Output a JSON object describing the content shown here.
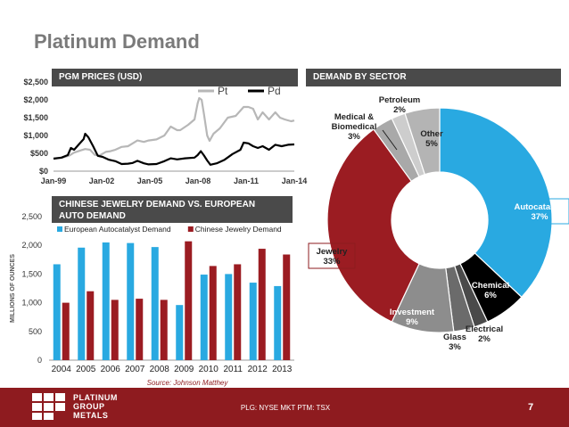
{
  "page_title": "Platinum Demand",
  "page_number": "7",
  "footer": {
    "logo_lines": [
      "PLATINUM",
      "GROUP",
      "METALS"
    ],
    "ticker": "PLG: NYSE MKT PTM: TSX"
  },
  "colors": {
    "accent_red": "#8e1b1f",
    "header_gray": "#4a4a4a",
    "blue": "#29a9e1",
    "red": "#9b1c22"
  },
  "chart_data": [
    {
      "type": "line",
      "title": "PGM PRICES (USD)",
      "x_ticks": [
        "Jan-99",
        "Jan-02",
        "Jan-05",
        "Jan-08",
        "Jan-11",
        "Jan-14"
      ],
      "y_ticks": [
        "$0",
        "$500",
        "$1,000",
        "$1,500",
        "$2,000",
        "$2,500"
      ],
      "ylim": [
        0,
        2500
      ],
      "xlim": [
        1999.0,
        2014.2
      ],
      "legend": "top-right",
      "series": [
        {
          "name": "Pt",
          "color": "#b7b7b7",
          "points": [
            [
              1999.0,
              360
            ],
            [
              1999.5,
              370
            ],
            [
              2000.0,
              440
            ],
            [
              2000.3,
              520
            ],
            [
              2000.7,
              580
            ],
            [
              2001.0,
              620
            ],
            [
              2001.3,
              600
            ],
            [
              2001.6,
              460
            ],
            [
              2001.9,
              440
            ],
            [
              2002.3,
              540
            ],
            [
              2002.6,
              560
            ],
            [
              2002.9,
              600
            ],
            [
              2003.3,
              680
            ],
            [
              2003.7,
              700
            ],
            [
              2004.0,
              780
            ],
            [
              2004.3,
              860
            ],
            [
              2004.7,
              820
            ],
            [
              2005.0,
              860
            ],
            [
              2005.5,
              890
            ],
            [
              2006.0,
              1000
            ],
            [
              2006.4,
              1250
            ],
            [
              2006.8,
              1150
            ],
            [
              2007.0,
              1150
            ],
            [
              2007.5,
              1300
            ],
            [
              2007.9,
              1450
            ],
            [
              2008.1,
              1900
            ],
            [
              2008.2,
              2050
            ],
            [
              2008.35,
              2000
            ],
            [
              2008.5,
              1600
            ],
            [
              2008.7,
              1000
            ],
            [
              2008.85,
              850
            ],
            [
              2009.1,
              1050
            ],
            [
              2009.5,
              1200
            ],
            [
              2010.0,
              1500
            ],
            [
              2010.5,
              1550
            ],
            [
              2011.0,
              1800
            ],
            [
              2011.3,
              1800
            ],
            [
              2011.6,
              1750
            ],
            [
              2011.9,
              1450
            ],
            [
              2012.2,
              1650
            ],
            [
              2012.6,
              1450
            ],
            [
              2013.0,
              1650
            ],
            [
              2013.3,
              1500
            ],
            [
              2013.6,
              1450
            ],
            [
              2014.0,
              1400
            ],
            [
              2014.2,
              1420
            ]
          ]
        },
        {
          "name": "Pd",
          "color": "#000000",
          "points": [
            [
              1999.0,
              350
            ],
            [
              1999.5,
              380
            ],
            [
              1999.9,
              450
            ],
            [
              2000.1,
              650
            ],
            [
              2000.3,
              600
            ],
            [
              2000.6,
              750
            ],
            [
              2000.9,
              900
            ],
            [
              2001.0,
              1050
            ],
            [
              2001.2,
              950
            ],
            [
              2001.5,
              700
            ],
            [
              2001.8,
              430
            ],
            [
              2002.1,
              400
            ],
            [
              2002.5,
              320
            ],
            [
              2002.9,
              280
            ],
            [
              2003.3,
              200
            ],
            [
              2003.7,
              210
            ],
            [
              2004.0,
              230
            ],
            [
              2004.3,
              290
            ],
            [
              2004.7,
              220
            ],
            [
              2005.0,
              190
            ],
            [
              2005.5,
              200
            ],
            [
              2006.0,
              280
            ],
            [
              2006.4,
              360
            ],
            [
              2006.8,
              330
            ],
            [
              2007.3,
              360
            ],
            [
              2007.9,
              380
            ],
            [
              2008.1,
              450
            ],
            [
              2008.3,
              560
            ],
            [
              2008.5,
              440
            ],
            [
              2008.7,
              300
            ],
            [
              2008.9,
              180
            ],
            [
              2009.3,
              220
            ],
            [
              2009.8,
              320
            ],
            [
              2010.3,
              480
            ],
            [
              2010.8,
              600
            ],
            [
              2011.0,
              800
            ],
            [
              2011.3,
              780
            ],
            [
              2011.6,
              700
            ],
            [
              2011.9,
              650
            ],
            [
              2012.2,
              700
            ],
            [
              2012.6,
              600
            ],
            [
              2013.0,
              740
            ],
            [
              2013.4,
              700
            ],
            [
              2013.8,
              740
            ],
            [
              2014.2,
              750
            ]
          ]
        }
      ]
    },
    {
      "type": "bar",
      "title": "CHINESE JEWELRY DEMAND VS. EUROPEAN AUTO DEMAND",
      "title_lines": [
        "CHINESE JEWELRY DEMAND VS. EUROPEAN",
        "AUTO DEMAND"
      ],
      "ylabel": "MILLIONS OF OUNCES",
      "ylim": [
        0,
        2500
      ],
      "y_ticks": [
        "0",
        "500",
        "1,000",
        "1,500",
        "2,000",
        "2,500"
      ],
      "categories": [
        "2004",
        "2005",
        "2006",
        "2007",
        "2008",
        "2009",
        "2010",
        "2011",
        "2012",
        "2013"
      ],
      "legend": "top",
      "source": "Source: Johnson Matthey",
      "series": [
        {
          "name": "European Autocatalyst Demand",
          "color": "#29a9e1",
          "values": [
            1670,
            1960,
            2050,
            2040,
            1970,
            960,
            1490,
            1500,
            1350,
            1290
          ]
        },
        {
          "name": "Chinese Jewelry Demand",
          "color": "#9b1c22",
          "values": [
            1000,
            1200,
            1050,
            1070,
            1050,
            2070,
            1640,
            1670,
            1940,
            1840
          ]
        }
      ]
    },
    {
      "type": "pie",
      "title": "DEMAND BY SECTOR",
      "slices": [
        {
          "label": "Autocatalyst",
          "value": 37,
          "pct": "37%",
          "color": "#29a9e1"
        },
        {
          "label": "Chemical",
          "value": 6,
          "pct": "6%",
          "color": "#000000"
        },
        {
          "label": "Electrical",
          "value": 2,
          "pct": "2%",
          "color": "#4a4a4a"
        },
        {
          "label": "Glass",
          "value": 3,
          "pct": "3%",
          "color": "#6b6b6b"
        },
        {
          "label": "Investment",
          "value": 9,
          "pct": "9%",
          "color": "#8d8d8d"
        },
        {
          "label": "Jewelry",
          "value": 33,
          "pct": "33%",
          "color": "#9b1c22"
        },
        {
          "label": "Medical & Biomedical",
          "value": 3,
          "pct": "3%",
          "color": "#a9a9a9"
        },
        {
          "label": "Petroleum",
          "value": 2,
          "pct": "2%",
          "color": "#cdcdcd"
        },
        {
          "label": "Other",
          "value": 5,
          "pct": "5%",
          "color": "#b4b4b4"
        }
      ]
    }
  ]
}
